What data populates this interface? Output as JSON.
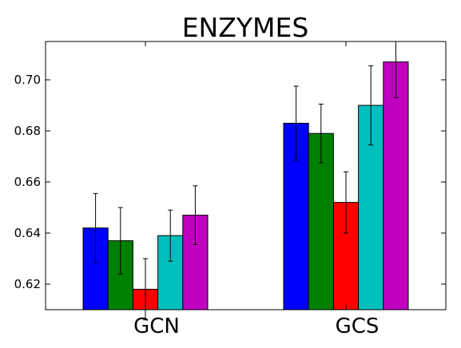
{
  "chart_data": {
    "type": "bar",
    "title": "ENZYMES",
    "xlabel": "",
    "ylabel": "",
    "categories": [
      "GCN",
      "GCS"
    ],
    "ylim": [
      0.61,
      0.715
    ],
    "yticks": [
      0.62,
      0.64,
      0.66,
      0.68,
      0.7
    ],
    "ytick_labels": [
      "0.62",
      "0.64",
      "0.66",
      "0.68",
      "0.70"
    ],
    "grid": false,
    "legend": "none",
    "series": [
      {
        "color": "#0000ff",
        "values": [
          0.642,
          0.683
        ],
        "errors": [
          0.0135,
          0.0145
        ]
      },
      {
        "color": "#008000",
        "values": [
          0.637,
          0.679
        ],
        "errors": [
          0.013,
          0.0115
        ]
      },
      {
        "color": "#ff0000",
        "values": [
          0.618,
          0.652
        ],
        "errors": [
          0.012,
          0.012
        ]
      },
      {
        "color": "#00bfbf",
        "values": [
          0.639,
          0.69
        ],
        "errors": [
          0.01,
          0.0155
        ]
      },
      {
        "color": "#bf00bf",
        "values": [
          0.647,
          0.707
        ],
        "errors": [
          0.0115,
          0.014
        ]
      }
    ]
  }
}
